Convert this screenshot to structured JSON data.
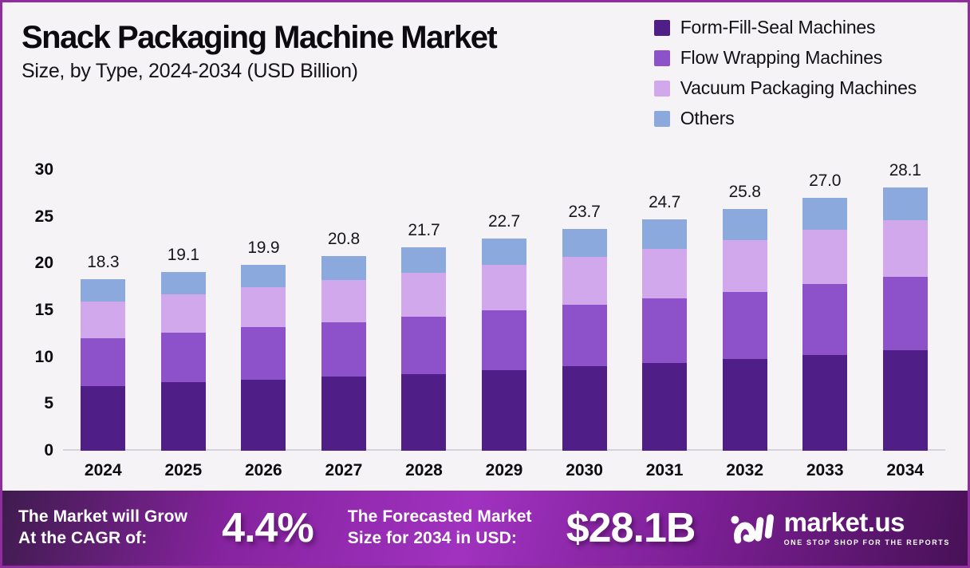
{
  "theme": {
    "border_color": "#8f2d9f",
    "page_bg": "#f6f3f7",
    "axis_line_color": "#d6d2da",
    "banner_gradient": [
      "#3f1b4e",
      "#86239f",
      "#a032bf",
      "#7c1f95",
      "#471156"
    ]
  },
  "header": {
    "title": "Snack Packaging Machine Market",
    "subtitle": "Size, by Type, 2024-2034 (USD Billion)"
  },
  "legend": [
    {
      "label": "Form-Fill-Seal Machines",
      "color": "#4f1e87"
    },
    {
      "label": "Flow Wrapping Machines",
      "color": "#8d51c9"
    },
    {
      "label": "Vacuum Packaging Machines",
      "color": "#d2a8ec"
    },
    {
      "label": "Others",
      "color": "#8ba9dc"
    }
  ],
  "chart_data": {
    "type": "bar",
    "stacked": true,
    "title": "Snack Packaging Machine Market Size, by Type, 2024-2034 (USD Billion)",
    "xlabel": "",
    "ylabel": "",
    "ylim": [
      0,
      30
    ],
    "y_ticks": [
      30,
      25,
      20,
      15,
      10,
      5,
      0
    ],
    "grid": false,
    "legend_position": "top-right",
    "categories": [
      "2024",
      "2025",
      "2026",
      "2027",
      "2028",
      "2029",
      "2030",
      "2031",
      "2032",
      "2033",
      "2034"
    ],
    "series": [
      {
        "name": "Form-Fill-Seal Machines",
        "color": "#4f1e87",
        "values": [
          6.9,
          7.3,
          7.6,
          7.9,
          8.2,
          8.6,
          9.0,
          9.4,
          9.8,
          10.2,
          10.7
        ]
      },
      {
        "name": "Flow Wrapping Machines",
        "color": "#8d51c9",
        "values": [
          5.1,
          5.3,
          5.6,
          5.8,
          6.1,
          6.4,
          6.6,
          6.9,
          7.2,
          7.6,
          7.9
        ]
      },
      {
        "name": "Vacuum Packaging Machines",
        "color": "#d2a8ec",
        "values": [
          3.9,
          4.1,
          4.3,
          4.5,
          4.7,
          4.9,
          5.1,
          5.3,
          5.5,
          5.8,
          6.0
        ]
      },
      {
        "name": "Others",
        "color": "#8ba9dc",
        "values": [
          2.4,
          2.4,
          2.4,
          2.6,
          2.7,
          2.8,
          3.0,
          3.1,
          3.3,
          3.4,
          3.5
        ]
      }
    ],
    "totals": [
      "18.3",
      "19.1",
      "19.9",
      "20.8",
      "21.7",
      "22.7",
      "23.7",
      "24.7",
      "25.8",
      "27.0",
      "28.1"
    ]
  },
  "banner": {
    "cagr_label_line1": "The Market will Grow",
    "cagr_label_line2": "At the CAGR of:",
    "cagr_value": "4.4%",
    "forecast_label_line1": "The Forecasted Market",
    "forecast_label_line2": "Size for 2034 in USD:",
    "forecast_value": "$28.1B",
    "brand": {
      "name": "market.us",
      "tagline": "ONE STOP SHOP FOR THE REPORTS"
    }
  }
}
